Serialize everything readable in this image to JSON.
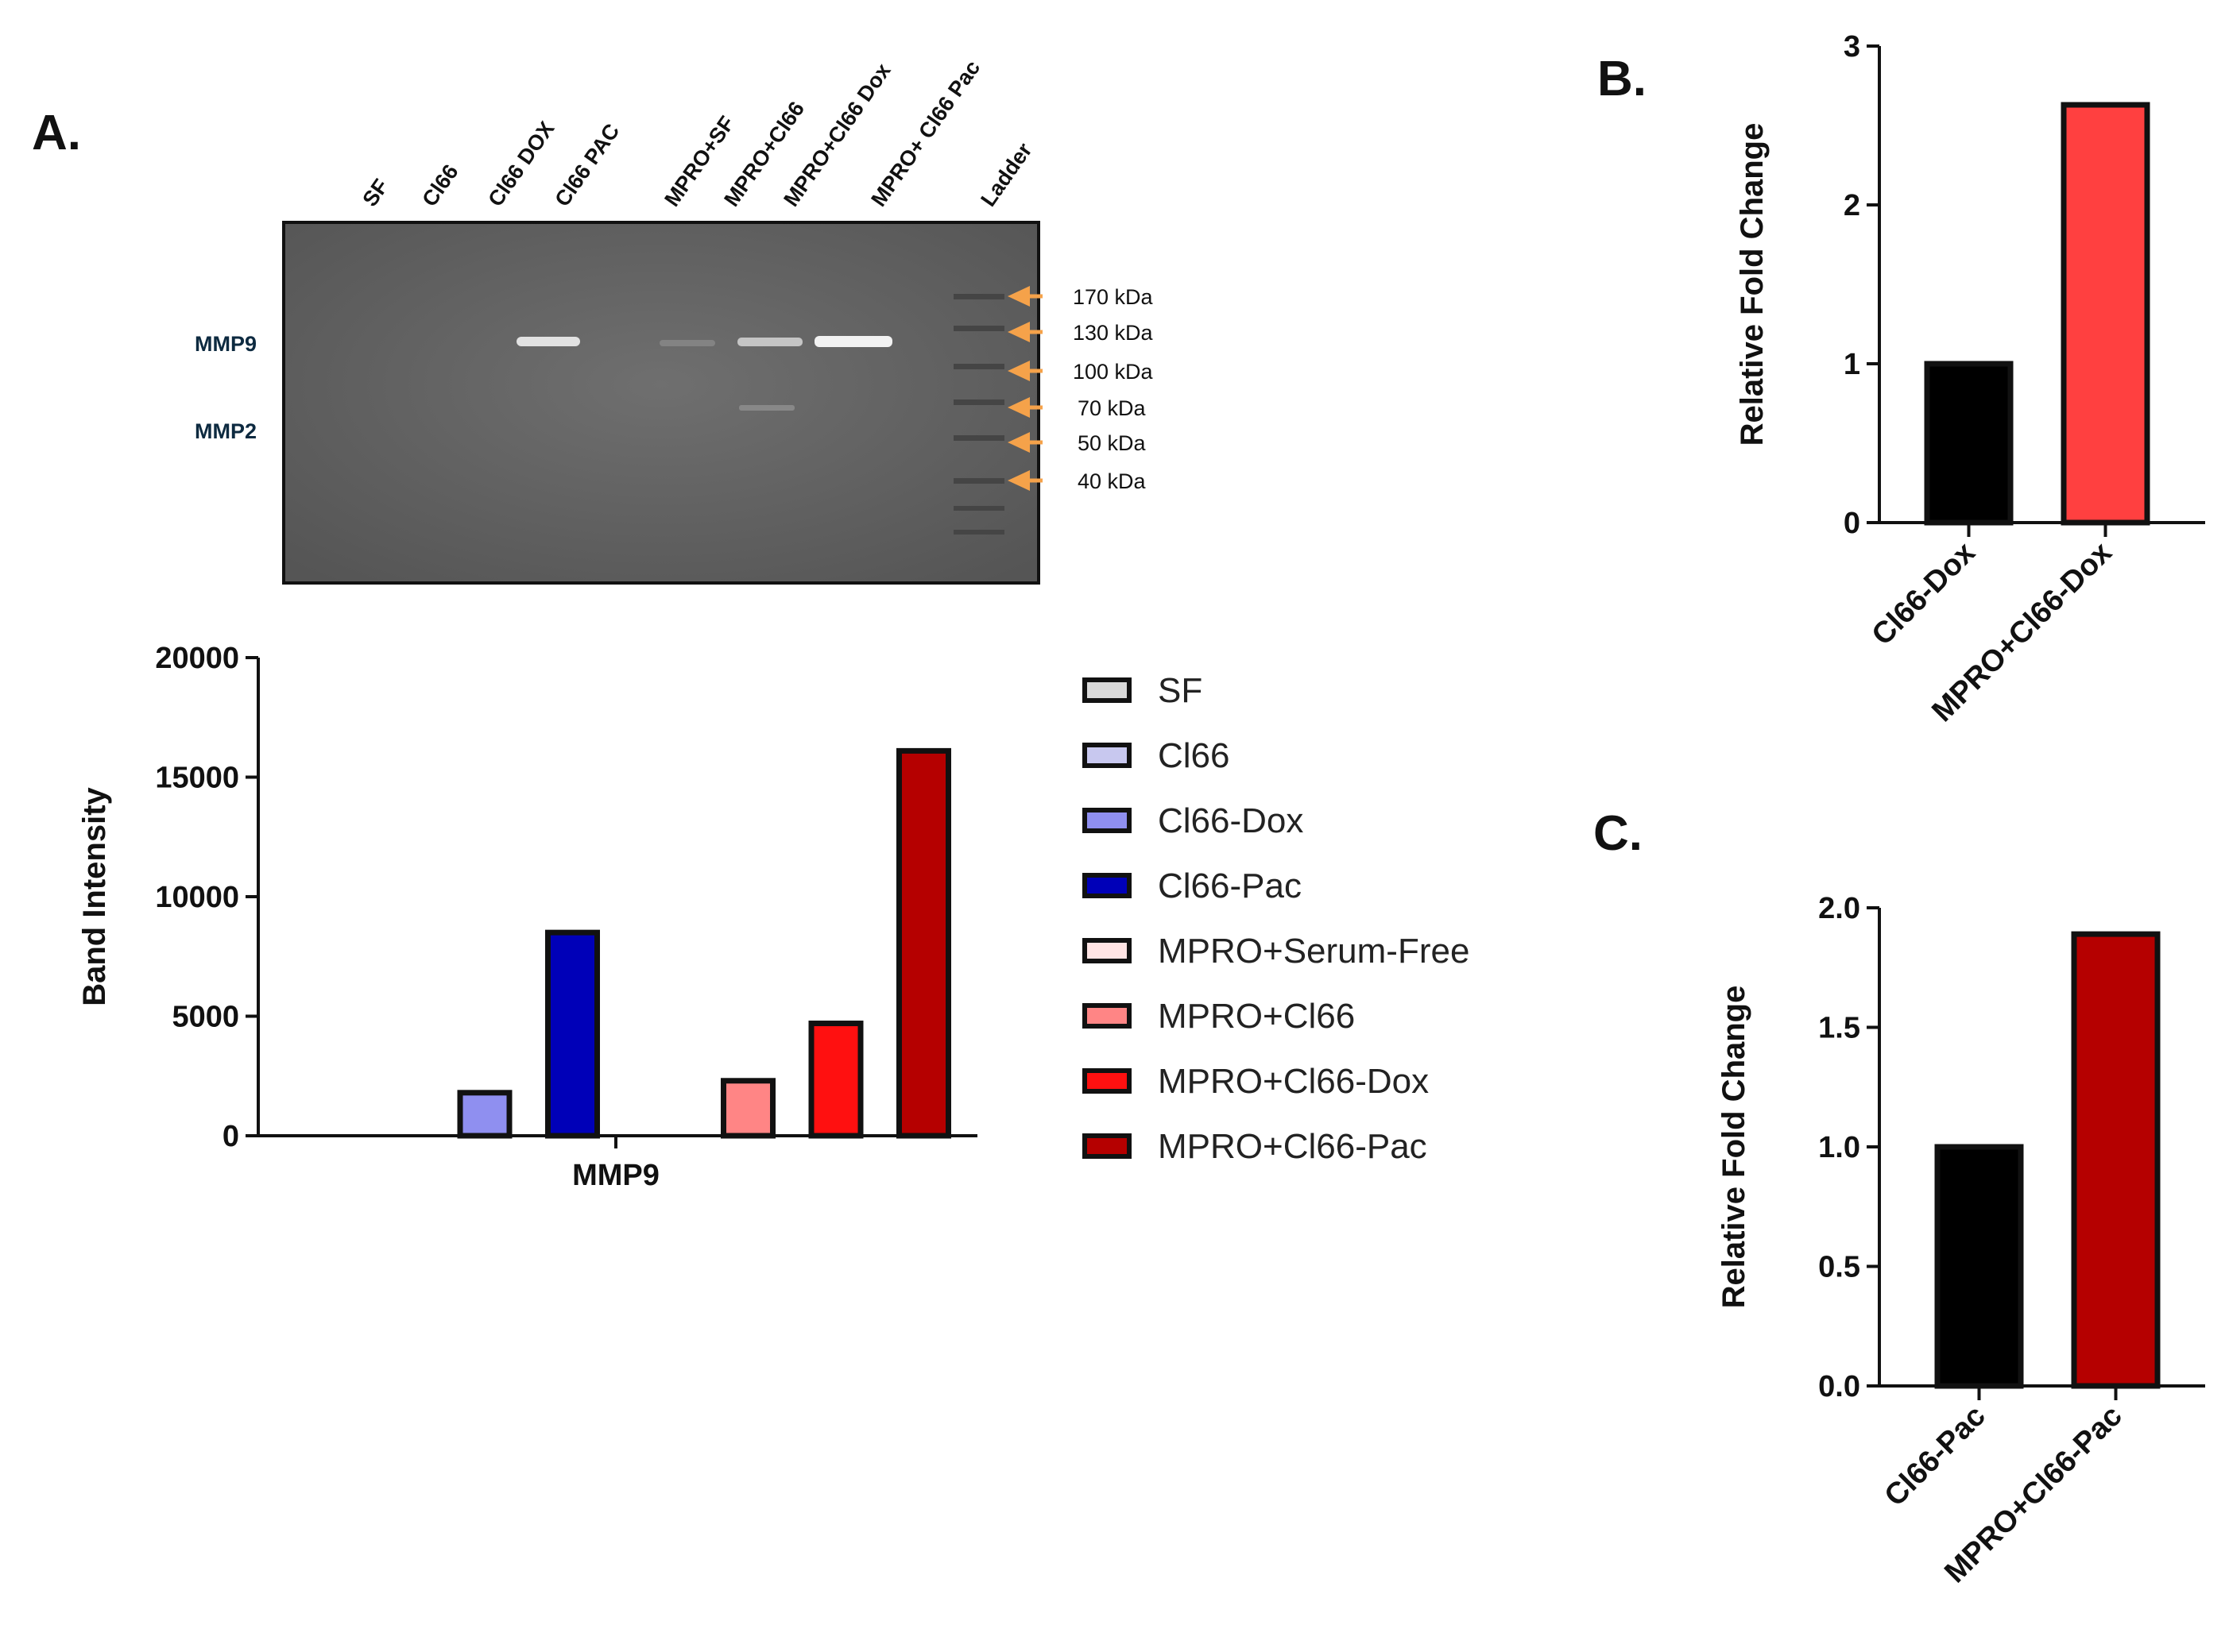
{
  "panels": {
    "a": "A.",
    "b": "B.",
    "c": "C."
  },
  "gel": {
    "lanes": [
      "SF",
      "Cl66",
      "Cl66 DOX",
      "Cl66 PAC",
      "MPRO+SF",
      "MPRO+Cl66",
      "MPRO+Cl66 Dox",
      "MPRO+ Cl66 Pac",
      "Ladder"
    ],
    "bands": [
      "MMP9",
      "MMP2"
    ],
    "markers": [
      "170  kDa",
      "130  kDa",
      "100  kDa",
      "70  kDa",
      "50  kDa",
      "40  kDa"
    ],
    "arrow_color": "#f5a24a"
  },
  "chart_data": [
    {
      "id": "A",
      "type": "bar",
      "ylabel": "Band Intensity",
      "xlabel": "MMP9",
      "ylim": [
        0,
        20000
      ],
      "yticks": [
        "0",
        "5000",
        "10000",
        "15000",
        "20000"
      ],
      "ytick_values": [
        0,
        5000,
        10000,
        15000,
        20000
      ],
      "legend_position": "right",
      "series": [
        {
          "name": "SF",
          "value": 0,
          "color": "#d9d9d9"
        },
        {
          "name": "Cl66",
          "value": 0,
          "color": "#c8c8ef"
        },
        {
          "name": "Cl66-Dox",
          "value": 1800,
          "color": "#8f8ff0"
        },
        {
          "name": "Cl66-Pac",
          "value": 8500,
          "color": "#0000b8"
        },
        {
          "name": "MPRO+Serum-Free",
          "value": 0,
          "color": "#ffe4e4"
        },
        {
          "name": "MPRO+Cl66",
          "value": 2300,
          "color": "#ff8585"
        },
        {
          "name": "MPRO+Cl66-Dox",
          "value": 4700,
          "color": "#ff1010"
        },
        {
          "name": "MPRO+Cl66-Pac",
          "value": 16100,
          "color": "#b50000"
        }
      ]
    },
    {
      "id": "B",
      "type": "bar",
      "ylabel": "Relative Fold Change",
      "ylim": [
        0,
        3
      ],
      "yticks": [
        "0",
        "1",
        "2",
        "3"
      ],
      "ytick_values": [
        0,
        1,
        2,
        3
      ],
      "categories": [
        "Cl66-Dox",
        "MPRO+Cl66-Dox"
      ],
      "values": [
        1.0,
        2.63
      ],
      "colors": [
        "#000000",
        "#ff4040"
      ]
    },
    {
      "id": "C",
      "type": "bar",
      "ylabel": "Relative Fold Change",
      "ylim": [
        0,
        2.0
      ],
      "yticks": [
        "0.0",
        "0.5",
        "1.0",
        "1.5",
        "2.0"
      ],
      "ytick_values": [
        0,
        0.5,
        1.0,
        1.5,
        2.0
      ],
      "categories": [
        "Cl66-Pac",
        "MPRO+Cl66-Pac"
      ],
      "values": [
        1.0,
        1.89
      ],
      "colors": [
        "#000000",
        "#b50000"
      ]
    }
  ]
}
